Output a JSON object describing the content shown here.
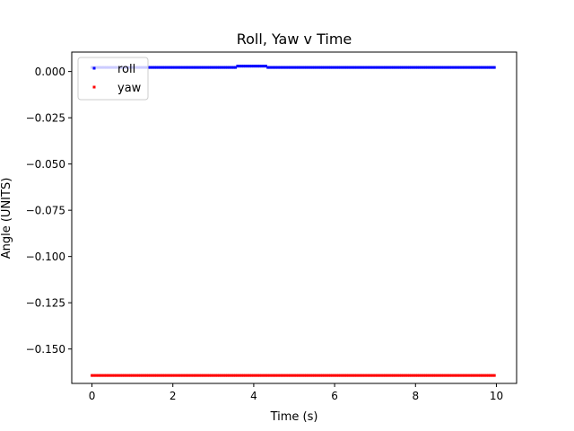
{
  "chart_data": {
    "type": "scatter",
    "title": "Roll, Yaw v Time",
    "xlabel": "Time (s)",
    "ylabel": "Angle (UNITS)",
    "xlim": [
      -0.5,
      10.5
    ],
    "ylim": [
      -0.1686,
      0.0105
    ],
    "x_ticks": [
      0,
      2,
      4,
      6,
      8,
      10
    ],
    "x_tick_labels": [
      "0",
      "2",
      "4",
      "6",
      "8",
      "10"
    ],
    "y_ticks": [
      0.0,
      -0.025,
      -0.05,
      -0.075,
      -0.1,
      -0.125,
      -0.15
    ],
    "y_tick_labels": [
      "0.000",
      "−0.025",
      "−0.050",
      "−0.075",
      "−0.100",
      "−0.125",
      "−0.150"
    ],
    "grid": false,
    "legend_position": "top-left",
    "sample_interval": 0.05,
    "series": [
      {
        "name": "roll",
        "color": "#0000ff",
        "x_range": [
          0,
          9.95
        ],
        "segments": [
          {
            "x_from": 0.0,
            "x_to": 3.55,
            "y": 0.0022
          },
          {
            "x_from": 3.6,
            "x_to": 4.3,
            "y": 0.0029
          },
          {
            "x_from": 4.35,
            "x_to": 9.95,
            "y": 0.0022
          }
        ]
      },
      {
        "name": "yaw",
        "color": "#ff0000",
        "x_range": [
          0,
          9.95
        ],
        "segments": [
          {
            "x_from": 0.0,
            "x_to": 9.95,
            "y": -0.1643
          }
        ]
      }
    ]
  }
}
